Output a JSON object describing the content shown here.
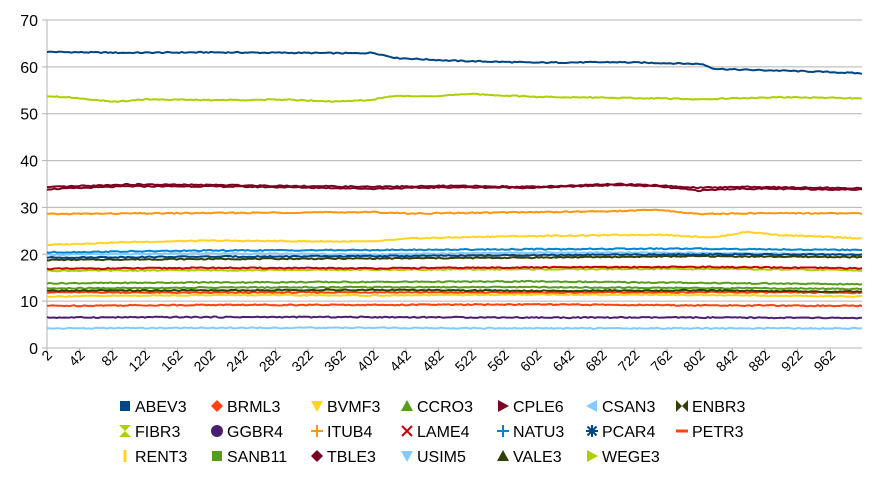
{
  "chart_data": {
    "type": "line",
    "title": "",
    "xlabel": "",
    "ylabel": "",
    "ylim": [
      0,
      70
    ],
    "yticks": [
      0,
      10,
      20,
      30,
      40,
      50,
      60,
      70
    ],
    "xlim": [
      2,
      1001
    ],
    "xticks": [
      2,
      42,
      82,
      122,
      162,
      202,
      242,
      282,
      322,
      362,
      402,
      442,
      482,
      522,
      562,
      602,
      642,
      682,
      722,
      762,
      802,
      842,
      882,
      922,
      962
    ],
    "grid": "horizontal",
    "legend_position": "bottom",
    "series": [
      {
        "name": "ABEV3",
        "color": "#004586",
        "marker": "square",
        "x": [
          2,
          100,
          200,
          300,
          380,
          402,
          430,
          500,
          600,
          700,
          760,
          805,
          820,
          850,
          900,
          960,
          1001
        ],
        "values": [
          63.2,
          63.0,
          63.1,
          63.0,
          62.9,
          63.0,
          61.9,
          61.3,
          60.9,
          61.0,
          60.8,
          60.6,
          59.6,
          59.4,
          59.2,
          58.9,
          58.6
        ]
      },
      {
        "name": "BRML3",
        "color": "#ff420e",
        "marker": "diamond",
        "x": [
          2,
          200,
          400,
          600,
          800,
          1001
        ],
        "values": [
          11.9,
          11.8,
          11.9,
          11.8,
          11.9,
          11.8
        ]
      },
      {
        "name": "BVMF3",
        "color": "#ffd320",
        "marker": "triangle-down",
        "x": [
          2,
          100,
          200,
          300,
          400,
          450,
          550,
          650,
          750,
          820,
          860,
          900,
          1001
        ],
        "values": [
          22.0,
          22.6,
          22.9,
          22.8,
          22.7,
          23.4,
          23.8,
          24.0,
          24.2,
          23.6,
          24.8,
          24.1,
          23.4
        ]
      },
      {
        "name": "CCRO3",
        "color": "#579d1c",
        "marker": "triangle-up",
        "x": [
          2,
          200,
          400,
          600,
          800,
          1001
        ],
        "values": [
          13.8,
          14.0,
          14.1,
          14.2,
          13.9,
          13.6
        ]
      },
      {
        "name": "CPLE6",
        "color": "#7e0021",
        "marker": "triangle-right",
        "x": [
          2,
          100,
          200,
          300,
          400,
          500,
          600,
          700,
          750,
          800,
          850,
          1001
        ],
        "values": [
          33.9,
          34.5,
          34.5,
          34.3,
          34.0,
          34.3,
          34.2,
          34.8,
          34.5,
          33.6,
          34.0,
          33.8
        ]
      },
      {
        "name": "CSAN3",
        "color": "#83caff",
        "marker": "triangle-left",
        "x": [
          2,
          200,
          400,
          600,
          800,
          1001
        ],
        "values": [
          19.9,
          20.2,
          20.0,
          20.4,
          20.3,
          20.0
        ]
      },
      {
        "name": "ENBR3",
        "color": "#314004",
        "marker": "bowtie",
        "x": [
          2,
          200,
          400,
          600,
          800,
          1001
        ],
        "values": [
          18.8,
          19.0,
          19.1,
          19.3,
          19.6,
          19.4
        ]
      },
      {
        "name": "FIBR3",
        "color": "#aecf00",
        "marker": "hourglass",
        "x": [
          2,
          200,
          400,
          600,
          800,
          1001
        ],
        "values": [
          16.5,
          16.6,
          16.7,
          16.8,
          16.9,
          16.6
        ]
      },
      {
        "name": "GGBR4",
        "color": "#4b1f6f",
        "marker": "circle",
        "x": [
          2,
          200,
          400,
          600,
          800,
          1001
        ],
        "values": [
          6.5,
          6.6,
          6.6,
          6.5,
          6.5,
          6.4
        ]
      },
      {
        "name": "ITUB4",
        "color": "#ff950e",
        "marker": "plus",
        "x": [
          2,
          200,
          400,
          450,
          600,
          700,
          750,
          800,
          900,
          1001
        ],
        "values": [
          28.6,
          28.8,
          29.0,
          28.7,
          29.0,
          29.2,
          29.5,
          28.6,
          28.8,
          28.7
        ]
      },
      {
        "name": "LAME4",
        "color": "#c5000b",
        "marker": "x",
        "x": [
          2,
          200,
          400,
          600,
          800,
          1001
        ],
        "values": [
          16.9,
          17.1,
          17.0,
          17.2,
          17.3,
          17.0
        ]
      },
      {
        "name": "NATU3",
        "color": "#0084d1",
        "marker": "plus",
        "x": [
          2,
          200,
          400,
          600,
          800,
          1001
        ],
        "values": [
          20.4,
          20.8,
          20.9,
          21.1,
          21.2,
          20.9
        ]
      },
      {
        "name": "PCAR4",
        "color": "#004586",
        "marker": "star",
        "x": [
          2,
          200,
          400,
          600,
          800,
          1001
        ],
        "values": [
          19.3,
          19.5,
          19.6,
          19.8,
          20.0,
          19.9
        ]
      },
      {
        "name": "PETR3",
        "color": "#ff420e",
        "marker": "dash",
        "x": [
          2,
          200,
          400,
          600,
          800,
          1001
        ],
        "values": [
          9.0,
          9.2,
          9.2,
          9.3,
          9.1,
          9.0
        ]
      },
      {
        "name": "RENT3",
        "color": "#ffd320",
        "marker": "bar",
        "x": [
          2,
          200,
          400,
          600,
          800,
          1001
        ],
        "values": [
          11.0,
          11.3,
          11.2,
          11.4,
          11.3,
          11.0
        ]
      },
      {
        "name": "SANB11",
        "color": "#579d1c",
        "marker": "square",
        "x": [
          2,
          200,
          400,
          600,
          800,
          1001
        ],
        "values": [
          12.7,
          12.9,
          13.0,
          13.0,
          12.8,
          12.6
        ]
      },
      {
        "name": "TBLE3",
        "color": "#7e0021",
        "marker": "diamond",
        "x": [
          2,
          100,
          200,
          300,
          400,
          500,
          600,
          700,
          750,
          800,
          850,
          1001
        ],
        "values": [
          34.3,
          34.9,
          34.8,
          34.6,
          34.4,
          34.6,
          34.4,
          35.0,
          34.7,
          34.2,
          34.4,
          34.1
        ]
      },
      {
        "name": "USIM5",
        "color": "#83caff",
        "marker": "triangle-down",
        "x": [
          2,
          200,
          400,
          600,
          800,
          1001
        ],
        "values": [
          4.2,
          4.3,
          4.3,
          4.2,
          4.2,
          4.2
        ]
      },
      {
        "name": "VALE3",
        "color": "#314004",
        "marker": "triangle-up",
        "x": [
          2,
          200,
          400,
          600,
          800,
          1001
        ],
        "values": [
          12.2,
          12.3,
          12.4,
          12.2,
          12.3,
          12.0
        ]
      },
      {
        "name": "WEGE3",
        "color": "#aecf00",
        "marker": "triangle-right",
        "x": [
          2,
          30,
          60,
          82,
          122,
          200,
          300,
          362,
          402,
          420,
          480,
          522,
          560,
          600,
          700,
          800,
          900,
          1001
        ],
        "values": [
          53.8,
          53.5,
          53.0,
          52.5,
          53.1,
          52.9,
          53.0,
          52.6,
          53.0,
          53.7,
          53.8,
          54.2,
          53.9,
          53.6,
          53.4,
          53.1,
          53.5,
          53.3
        ]
      }
    ]
  }
}
